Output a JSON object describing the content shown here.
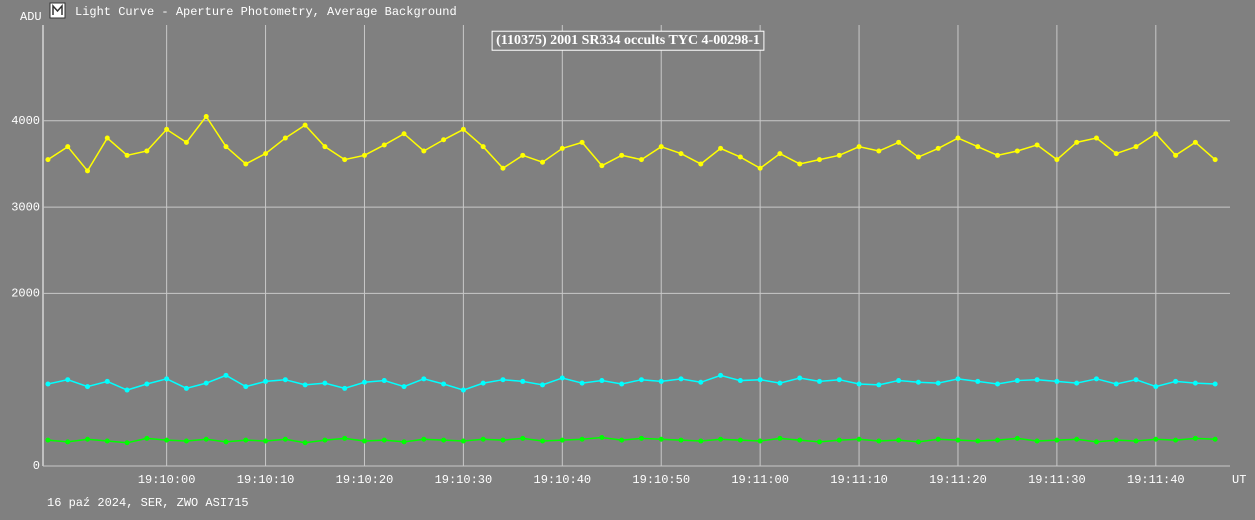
{
  "window_title": "Light Curve - Aperture Photometry, Average Background",
  "chart_data": {
    "type": "line",
    "title": "(110375) 2001 SR334 occults TYC 4-00298-1",
    "ylabel": "ADU",
    "xlabel": "UT",
    "footer": "16 paź 2024, SER, ZWO ASI715",
    "x": [
      "19:09:48",
      "19:09:50",
      "19:09:52",
      "19:09:54",
      "19:09:56",
      "19:09:58",
      "19:10:00",
      "19:10:02",
      "19:10:04",
      "19:10:06",
      "19:10:08",
      "19:10:10",
      "19:10:12",
      "19:10:14",
      "19:10:16",
      "19:10:18",
      "19:10:20",
      "19:10:22",
      "19:10:24",
      "19:10:26",
      "19:10:28",
      "19:10:30",
      "19:10:32",
      "19:10:34",
      "19:10:36",
      "19:10:38",
      "19:10:40",
      "19:10:42",
      "19:10:44",
      "19:10:46",
      "19:10:48",
      "19:10:50",
      "19:10:52",
      "19:10:54",
      "19:10:56",
      "19:10:58",
      "19:11:00",
      "19:11:02",
      "19:11:04",
      "19:11:06",
      "19:11:08",
      "19:11:10",
      "19:11:12",
      "19:11:14",
      "19:11:16",
      "19:11:18",
      "19:11:20",
      "19:11:22",
      "19:11:24",
      "19:11:26",
      "19:11:28",
      "19:11:30",
      "19:11:32",
      "19:11:34",
      "19:11:36",
      "19:11:38",
      "19:11:40",
      "19:11:42",
      "19:11:44",
      "19:11:46"
    ],
    "series": [
      {
        "color": "#ffff00",
        "values": [
          3550,
          3700,
          3420,
          3800,
          3600,
          3650,
          3900,
          3750,
          4050,
          3700,
          3500,
          3620,
          3800,
          3950,
          3700,
          3550,
          3600,
          3720,
          3850,
          3650,
          3780,
          3900,
          3700,
          3450,
          3600,
          3520,
          3680,
          3750,
          3480,
          3600,
          3550,
          3700,
          3620,
          3500,
          3680,
          3580,
          3450,
          3620,
          3500,
          3550,
          3600,
          3700,
          3650,
          3750,
          3580,
          3680,
          3800,
          3700,
          3600,
          3650,
          3720,
          3550,
          3750,
          3800,
          3620,
          3700,
          3850,
          3600,
          3750,
          3550
        ]
      },
      {
        "color": "#00ffff",
        "values": [
          950,
          1000,
          920,
          980,
          880,
          950,
          1010,
          900,
          960,
          1050,
          920,
          980,
          1000,
          940,
          960,
          900,
          970,
          990,
          920,
          1010,
          950,
          880,
          960,
          1000,
          980,
          940,
          1020,
          960,
          990,
          950,
          1000,
          980,
          1010,
          970,
          1050,
          990,
          1000,
          960,
          1020,
          980,
          1000,
          950,
          940,
          990,
          970,
          960,
          1010,
          980,
          950,
          990,
          1000,
          980,
          960,
          1010,
          950,
          1000,
          920,
          980,
          960,
          950
        ]
      },
      {
        "color": "#00ff00",
        "values": [
          300,
          280,
          310,
          290,
          270,
          320,
          300,
          290,
          310,
          280,
          300,
          290,
          310,
          270,
          300,
          320,
          290,
          300,
          280,
          310,
          300,
          290,
          310,
          300,
          320,
          290,
          300,
          310,
          330,
          300,
          320,
          310,
          300,
          290,
          310,
          300,
          290,
          320,
          300,
          280,
          300,
          310,
          290,
          300,
          280,
          310,
          300,
          290,
          300,
          320,
          290,
          300,
          310,
          280,
          300,
          290,
          310,
          300,
          320,
          310
        ]
      }
    ],
    "xlim": [
      "19:09:47.5",
      "19:11:47.5"
    ],
    "xticks": [
      "19:10:00",
      "19:10:10",
      "19:10:20",
      "19:10:30",
      "19:10:40",
      "19:10:50",
      "19:11:00",
      "19:11:10",
      "19:11:20",
      "19:11:30",
      "19:11:40"
    ],
    "ylim": [
      0,
      5110
    ],
    "yticks": [
      0,
      2000,
      3000,
      4000
    ],
    "grid": true
  }
}
